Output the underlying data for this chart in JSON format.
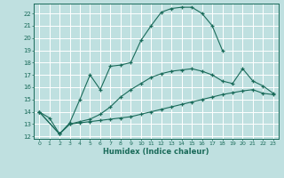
{
  "background_color": "#bfe0e0",
  "grid_color": "#ffffff",
  "line_color": "#1a6b5a",
  "xlabel": "Humidex (Indice chaleur)",
  "xlim": [
    -0.5,
    23.5
  ],
  "ylim": [
    11.8,
    22.8
  ],
  "yticks": [
    12,
    13,
    14,
    15,
    16,
    17,
    18,
    19,
    20,
    21,
    22
  ],
  "xticks": [
    0,
    1,
    2,
    3,
    4,
    5,
    6,
    7,
    8,
    9,
    10,
    11,
    12,
    13,
    14,
    15,
    16,
    17,
    18,
    19,
    20,
    21,
    22,
    23
  ],
  "s1_x": [
    0,
    1,
    2,
    3,
    4,
    5,
    6,
    7,
    8,
    9,
    10,
    11,
    12,
    13,
    14,
    15,
    16,
    17,
    18
  ],
  "s1_y": [
    14.0,
    13.5,
    12.2,
    13.1,
    15.0,
    17.0,
    15.8,
    17.7,
    17.8,
    18.0,
    19.8,
    21.0,
    22.1,
    22.4,
    22.5,
    22.5,
    22.0,
    21.0,
    19.0
  ],
  "s2_x": [
    0,
    2,
    3,
    4,
    5,
    6,
    7,
    8,
    9,
    10,
    11,
    12,
    13,
    14,
    15,
    16,
    17,
    18,
    19,
    20,
    21,
    22,
    23
  ],
  "s2_y": [
    14.0,
    12.2,
    13.0,
    13.1,
    13.2,
    13.3,
    13.4,
    13.5,
    13.6,
    13.8,
    14.0,
    14.2,
    14.4,
    14.6,
    14.8,
    15.0,
    15.2,
    15.4,
    15.55,
    15.7,
    15.8,
    15.5,
    15.4
  ],
  "s3_x": [
    0,
    2,
    3,
    4,
    5,
    6,
    7,
    8,
    9,
    10,
    11,
    12,
    13,
    14,
    15,
    16,
    17,
    18,
    19,
    20,
    21,
    22,
    23
  ],
  "s3_y": [
    14.0,
    12.2,
    13.0,
    13.2,
    13.4,
    13.8,
    14.4,
    15.2,
    15.8,
    16.3,
    16.8,
    17.1,
    17.3,
    17.4,
    17.5,
    17.3,
    17.0,
    16.5,
    16.3,
    17.5,
    16.5,
    16.1,
    15.5
  ]
}
